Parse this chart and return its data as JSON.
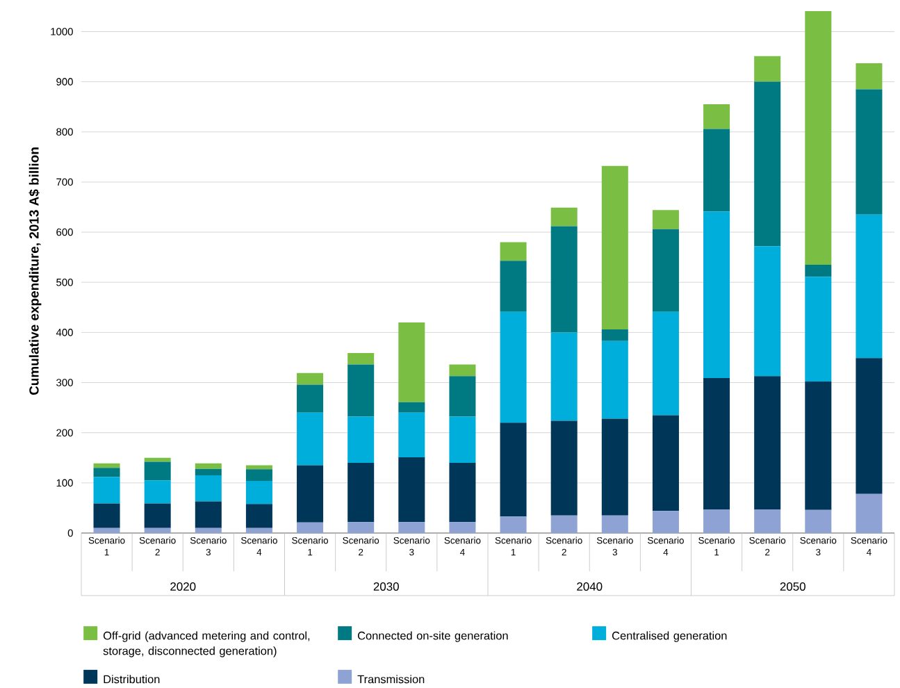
{
  "chart_data": {
    "type": "bar",
    "stacked": true,
    "ylabel": "Cumulative expenditure, 2013 A$ billion",
    "categories": [
      "Scenario 1",
      "Scenario 2",
      "Scenario 3",
      "Scenario 4",
      "Scenario 1",
      "Scenario 2",
      "Scenario 3",
      "Scenario 4",
      "Scenario 1",
      "Scenario 2",
      "Scenario 3",
      "Scenario 4",
      "Scenario 1",
      "Scenario 2",
      "Scenario 3",
      "Scenario 4"
    ],
    "annotations": [
      "2020",
      "2030",
      "2040",
      "2050"
    ],
    "series": [
      {
        "name": "Transmission",
        "color": "#8ea3d4",
        "values": [
          10,
          10,
          10,
          10,
          21,
          22,
          22,
          22,
          33,
          35,
          35,
          44,
          47,
          47,
          46,
          78
        ]
      },
      {
        "name": "Distribution",
        "color": "#003657",
        "values": [
          49,
          49,
          53,
          48,
          114,
          118,
          129,
          118,
          187,
          189,
          193,
          191,
          262,
          266,
          256,
          271
        ]
      },
      {
        "name": "Centralised generation",
        "color": "#00aedb",
        "values": [
          53,
          46,
          52,
          46,
          105,
          92,
          89,
          92,
          221,
          176,
          155,
          206,
          332,
          259,
          209,
          286
        ]
      },
      {
        "name": "Connected on-site generation",
        "color": "#007a82",
        "values": [
          18,
          37,
          13,
          23,
          56,
          104,
          21,
          81,
          102,
          212,
          23,
          165,
          165,
          328,
          24,
          250
        ]
      },
      {
        "name": "Off-grid (advanced metering and control, storage, disconnected generation)",
        "color": "#7abf43",
        "values": [
          9,
          8,
          11,
          8,
          23,
          23,
          159,
          23,
          37,
          37,
          326,
          38,
          49,
          51,
          506,
          52
        ]
      }
    ],
    "ylim": [
      0,
      1045
    ],
    "yticks": [
      0,
      100,
      200,
      300,
      400,
      500,
      600,
      700,
      800,
      900,
      1000
    ],
    "grid": "y",
    "legend": "bottom"
  }
}
